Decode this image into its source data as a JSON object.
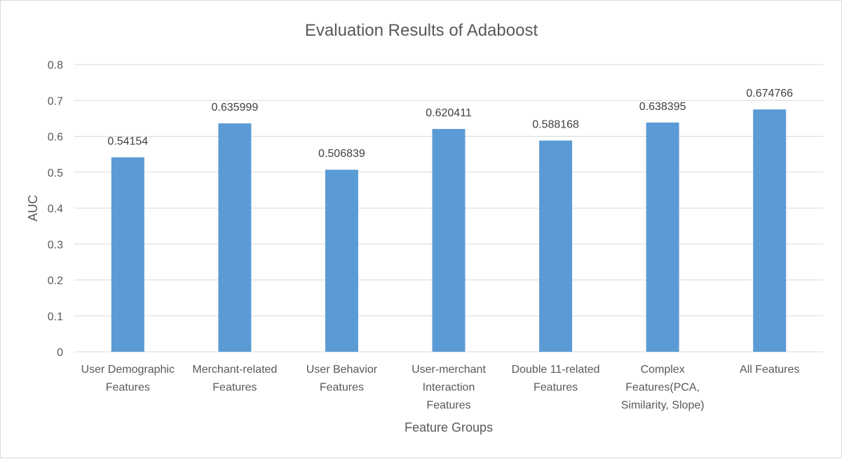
{
  "chart_data": {
    "type": "bar",
    "title": "Evaluation Results of Adaboost",
    "xlabel": "Feature Groups",
    "ylabel": "AUC",
    "ylim": [
      0,
      0.8
    ],
    "yticks": [
      "0",
      "0.1",
      "0.2",
      "0.3",
      "0.4",
      "0.5",
      "0.6",
      "0.7",
      "0.8"
    ],
    "grid": true,
    "legend": "none",
    "bar_color": "#5b9bd5",
    "categories": [
      [
        "User Demographic",
        "Features"
      ],
      [
        "Merchant-related",
        "Features"
      ],
      [
        "User Behavior",
        "Features"
      ],
      [
        "User-merchant",
        "Interaction",
        "Features"
      ],
      [
        "Double 11-related",
        "Features"
      ],
      [
        "Complex",
        "Features(PCA,",
        "Similarity, Slope)"
      ],
      [
        "All Features"
      ]
    ],
    "values": [
      0.54154,
      0.635999,
      0.506839,
      0.620411,
      0.588168,
      0.638395,
      0.674766
    ],
    "value_labels": [
      "0.54154",
      "0.635999",
      "0.506839",
      "0.620411",
      "0.588168",
      "0.638395",
      "0.674766"
    ]
  }
}
